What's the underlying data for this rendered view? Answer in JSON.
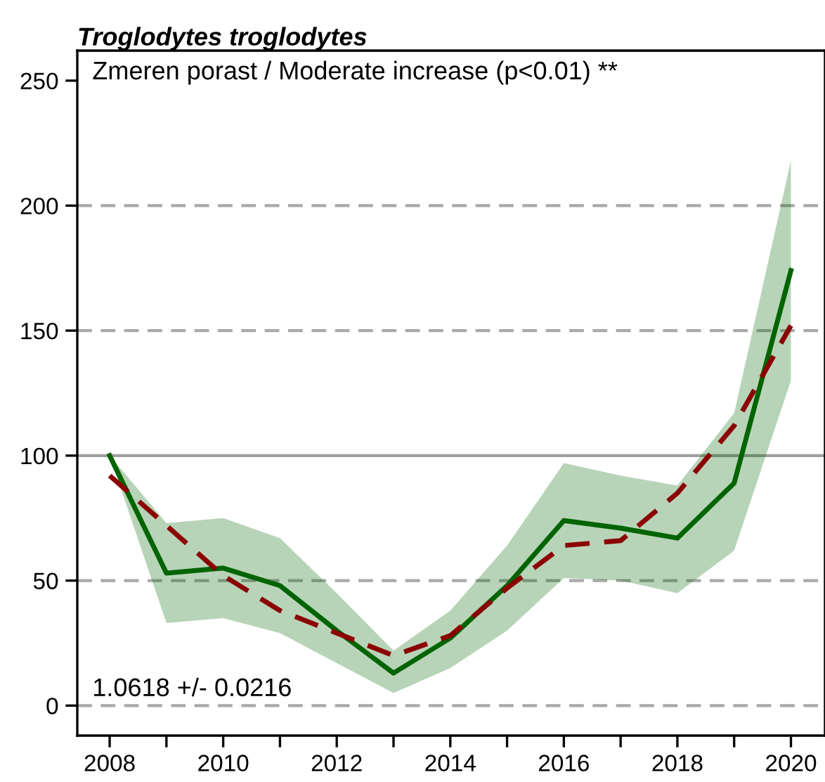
{
  "chart_data": {
    "type": "line",
    "title": "Troglodytes troglodytes",
    "annotations": [
      "Zmeren porast / Moderate increase (p<0.01) **",
      "1.0618 +/- 0.0216"
    ],
    "x": [
      2008,
      2009,
      2010,
      2011,
      2012,
      2013,
      2014,
      2015,
      2016,
      2017,
      2018,
      2019,
      2020
    ],
    "series": [
      {
        "color": "#006400",
        "line_style": "solid",
        "values": [
          100,
          53,
          55,
          48,
          30,
          13,
          27,
          48,
          74,
          71,
          67,
          89,
          174
        ],
        "lower": [
          100,
          33,
          35,
          29,
          17,
          5,
          15,
          30,
          51,
          50,
          45,
          62,
          130
        ],
        "upper": [
          100,
          73,
          75,
          67,
          45,
          22,
          38,
          64,
          97,
          92,
          88,
          117,
          218
        ]
      },
      {
        "color": "#8b0000",
        "line_style": "dashed",
        "values": [
          92,
          72,
          52,
          38,
          29,
          20,
          28,
          47,
          64,
          66,
          85,
          112,
          152
        ]
      }
    ],
    "xlim": [
      2007.43,
      2020.6
    ],
    "ylim": [
      -12,
      262
    ],
    "xticks": [
      2008,
      {
        "value": 2009,
        "label": null
      },
      2010,
      {
        "value": 2011,
        "label": null
      },
      2012,
      {
        "value": 2013,
        "label": null
      },
      2014,
      {
        "value": 2015,
        "label": null
      },
      2016,
      {
        "value": 2017,
        "label": null
      },
      2018,
      {
        "value": 2019,
        "label": null
      },
      2020
    ],
    "yticks": [
      0,
      50,
      100,
      150,
      200,
      250
    ],
    "ref_lines": [
      {
        "axis": "y",
        "value": 0,
        "color": "#a9a9a9",
        "line_style": "dashed"
      },
      {
        "axis": "y",
        "value": 50,
        "color": "#a9a9a9",
        "line_style": "dashed"
      },
      {
        "axis": "y",
        "value": 100,
        "color": "#a0a0a0",
        "line_style": "solid"
      },
      {
        "axis": "y",
        "value": 150,
        "color": "#a9a9a9",
        "line_style": "dashed"
      },
      {
        "axis": "y",
        "value": 200,
        "color": "#a9a9a9",
        "line_style": "dashed"
      }
    ],
    "grid": false,
    "legend": false
  }
}
